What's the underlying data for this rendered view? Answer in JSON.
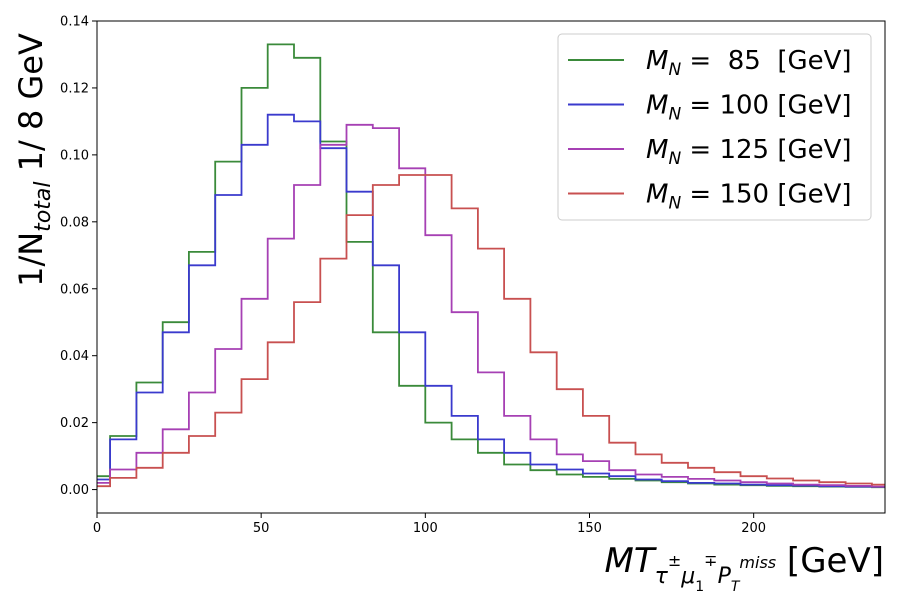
{
  "chart_data": {
    "type": "line",
    "style": "step-histogram",
    "xlabel": {
      "main": "MT",
      "sub1": "τ",
      "sup1": "±",
      "sub2": "μ",
      "sub2_sub": "1",
      "sup2": "∓",
      "sub3": "P",
      "sub3_sub": "T",
      "sub3_sup": "miss",
      "unit": " [GeV]"
    },
    "ylabel": {
      "prefix": "1/N",
      "sub": "total",
      "suffix": "  1/ 8 GeV"
    },
    "xlim": [
      0,
      240
    ],
    "ylim": [
      -0.007,
      0.14
    ],
    "xticks": [
      0,
      50,
      100,
      150,
      200
    ],
    "yticks": [
      0.0,
      0.02,
      0.04,
      0.06,
      0.08,
      0.1,
      0.12,
      0.14
    ],
    "ytick_labels": [
      "0.00",
      "0.02",
      "0.04",
      "0.06",
      "0.08",
      "0.10",
      "0.12",
      "0.14"
    ],
    "bin_edges": [
      0,
      4,
      12,
      20,
      28,
      36,
      44,
      52,
      60,
      68,
      76,
      84,
      92,
      100,
      108,
      116,
      124,
      132,
      140,
      148,
      156,
      164,
      172,
      180,
      188,
      196,
      204,
      212,
      220,
      228,
      236,
      240
    ],
    "legend_position": "top-right",
    "grid": false,
    "series": [
      {
        "name": "M_N =  85  [GeV]",
        "label_var": "M",
        "label_sub": "N",
        "label_rest": " =  85  [GeV]",
        "color": "#3a8a3a",
        "values": [
          0.004,
          0.016,
          0.032,
          0.05,
          0.071,
          0.098,
          0.12,
          0.133,
          0.129,
          0.104,
          0.074,
          0.047,
          0.031,
          0.02,
          0.015,
          0.011,
          0.0075,
          0.0058,
          0.0045,
          0.0038,
          0.0032,
          0.0027,
          0.0022,
          0.0018,
          0.0015,
          0.0013,
          0.0011,
          0.001,
          0.0009,
          0.0008,
          0.0007
        ]
      },
      {
        "name": "M_N = 100 [GeV]",
        "label_var": "M",
        "label_sub": "N",
        "label_rest": " = 100 [GeV]",
        "color": "#3a3acd",
        "values": [
          0.003,
          0.015,
          0.029,
          0.047,
          0.067,
          0.088,
          0.103,
          0.112,
          0.11,
          0.102,
          0.089,
          0.067,
          0.047,
          0.031,
          0.022,
          0.015,
          0.011,
          0.0075,
          0.006,
          0.0048,
          0.004,
          0.003,
          0.0025,
          0.002,
          0.0018,
          0.0015,
          0.0013,
          0.0012,
          0.001,
          0.0009,
          0.0008
        ]
      },
      {
        "name": "M_N = 125 [GeV]",
        "label_var": "M",
        "label_sub": "N",
        "label_rest": " = 125 [GeV]",
        "color": "#a640b4",
        "values": [
          0.002,
          0.006,
          0.011,
          0.018,
          0.029,
          0.042,
          0.057,
          0.075,
          0.091,
          0.103,
          0.109,
          0.108,
          0.096,
          0.076,
          0.053,
          0.035,
          0.022,
          0.015,
          0.0105,
          0.0085,
          0.0058,
          0.0045,
          0.0038,
          0.0032,
          0.0027,
          0.0022,
          0.0018,
          0.0015,
          0.0013,
          0.0011,
          0.0009
        ]
      },
      {
        "name": "M_N = 150 [GeV]",
        "label_var": "M",
        "label_sub": "N",
        "label_rest": " = 150 [GeV]",
        "color": "#c85050",
        "values": [
          0.001,
          0.0035,
          0.0065,
          0.011,
          0.016,
          0.023,
          0.033,
          0.044,
          0.056,
          0.069,
          0.082,
          0.091,
          0.094,
          0.094,
          0.084,
          0.072,
          0.057,
          0.041,
          0.03,
          0.022,
          0.014,
          0.0105,
          0.008,
          0.0065,
          0.0052,
          0.004,
          0.0033,
          0.0027,
          0.0022,
          0.0018,
          0.0015
        ]
      }
    ]
  }
}
